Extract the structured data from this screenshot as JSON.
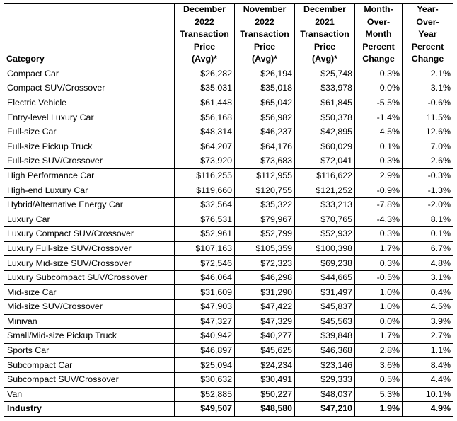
{
  "headers": [
    "Category",
    "December\n2022\nTransaction\nPrice\n(Avg)*",
    "November\n2022\nTransaction\nPrice\n(Avg)*",
    "December\n2021\nTransaction\nPrice\n(Avg)*",
    "Month-\nOver-\nMonth\nPercent\nChange",
    "Year-\nOver-\nYear\nPercent\nChange"
  ],
  "rows": [
    [
      "Compact Car",
      "$26,282",
      "$26,194",
      "$25,748",
      "0.3%",
      "2.1%"
    ],
    [
      "Compact SUV/Crossover",
      "$35,031",
      "$35,018",
      "$33,978",
      "0.0%",
      "3.1%"
    ],
    [
      "Electric Vehicle",
      "$61,448",
      "$65,042",
      "$61,845",
      "-5.5%",
      "-0.6%"
    ],
    [
      "Entry-level Luxury Car",
      "$56,168",
      "$56,982",
      "$50,378",
      "-1.4%",
      "11.5%"
    ],
    [
      "Full-size Car",
      "$48,314",
      "$46,237",
      "$42,895",
      "4.5%",
      "12.6%"
    ],
    [
      "Full-size Pickup Truck",
      "$64,207",
      "$64,176",
      "$60,029",
      "0.1%",
      "7.0%"
    ],
    [
      "Full-size SUV/Crossover",
      "$73,920",
      "$73,683",
      "$72,041",
      "0.3%",
      "2.6%"
    ],
    [
      "High Performance Car",
      "$116,255",
      "$112,955",
      "$116,622",
      "2.9%",
      "-0.3%"
    ],
    [
      "High-end Luxury Car",
      "$119,660",
      "$120,755",
      "$121,252",
      "-0.9%",
      "-1.3%"
    ],
    [
      "Hybrid/Alternative Energy Car",
      "$32,564",
      "$35,322",
      "$33,213",
      "-7.8%",
      "-2.0%"
    ],
    [
      "Luxury Car",
      "$76,531",
      "$79,967",
      "$70,765",
      "-4.3%",
      "8.1%"
    ],
    [
      "Luxury Compact SUV/Crossover",
      "$52,961",
      "$52,799",
      "$52,932",
      "0.3%",
      "0.1%"
    ],
    [
      "Luxury Full-size SUV/Crossover",
      "$107,163",
      "$105,359",
      "$100,398",
      "1.7%",
      "6.7%"
    ],
    [
      "Luxury Mid-size SUV/Crossover",
      "$72,546",
      "$72,323",
      "$69,238",
      "0.3%",
      "4.8%"
    ],
    [
      "Luxury Subcompact SUV/Crossover",
      "$46,064",
      "$46,298",
      "$44,665",
      "-0.5%",
      "3.1%"
    ],
    [
      "Mid-size Car",
      "$31,609",
      "$31,290",
      "$31,497",
      "1.0%",
      "0.4%"
    ],
    [
      "Mid-size SUV/Crossover",
      "$47,903",
      "$47,422",
      "$45,837",
      "1.0%",
      "4.5%"
    ],
    [
      "Minivan",
      "$47,327",
      "$47,329",
      "$45,563",
      "0.0%",
      "3.9%"
    ],
    [
      "Small/Mid-size Pickup Truck",
      "$40,942",
      "$40,277",
      "$39,848",
      "1.7%",
      "2.7%"
    ],
    [
      "Sports Car",
      "$46,897",
      "$45,625",
      "$46,368",
      "2.8%",
      "1.1%"
    ],
    [
      "Subcompact Car",
      "$25,094",
      "$24,234",
      "$23,146",
      "3.6%",
      "8.4%"
    ],
    [
      "Subcompact SUV/Crossover",
      "$30,632",
      "$30,491",
      "$29,333",
      "0.5%",
      "4.4%"
    ],
    [
      "Van",
      "$52,885",
      "$50,227",
      "$48,037",
      "5.3%",
      "10.1%"
    ]
  ],
  "total": [
    "Industry",
    "$49,507",
    "$48,580",
    "$47,210",
    "1.9%",
    "4.9%"
  ]
}
